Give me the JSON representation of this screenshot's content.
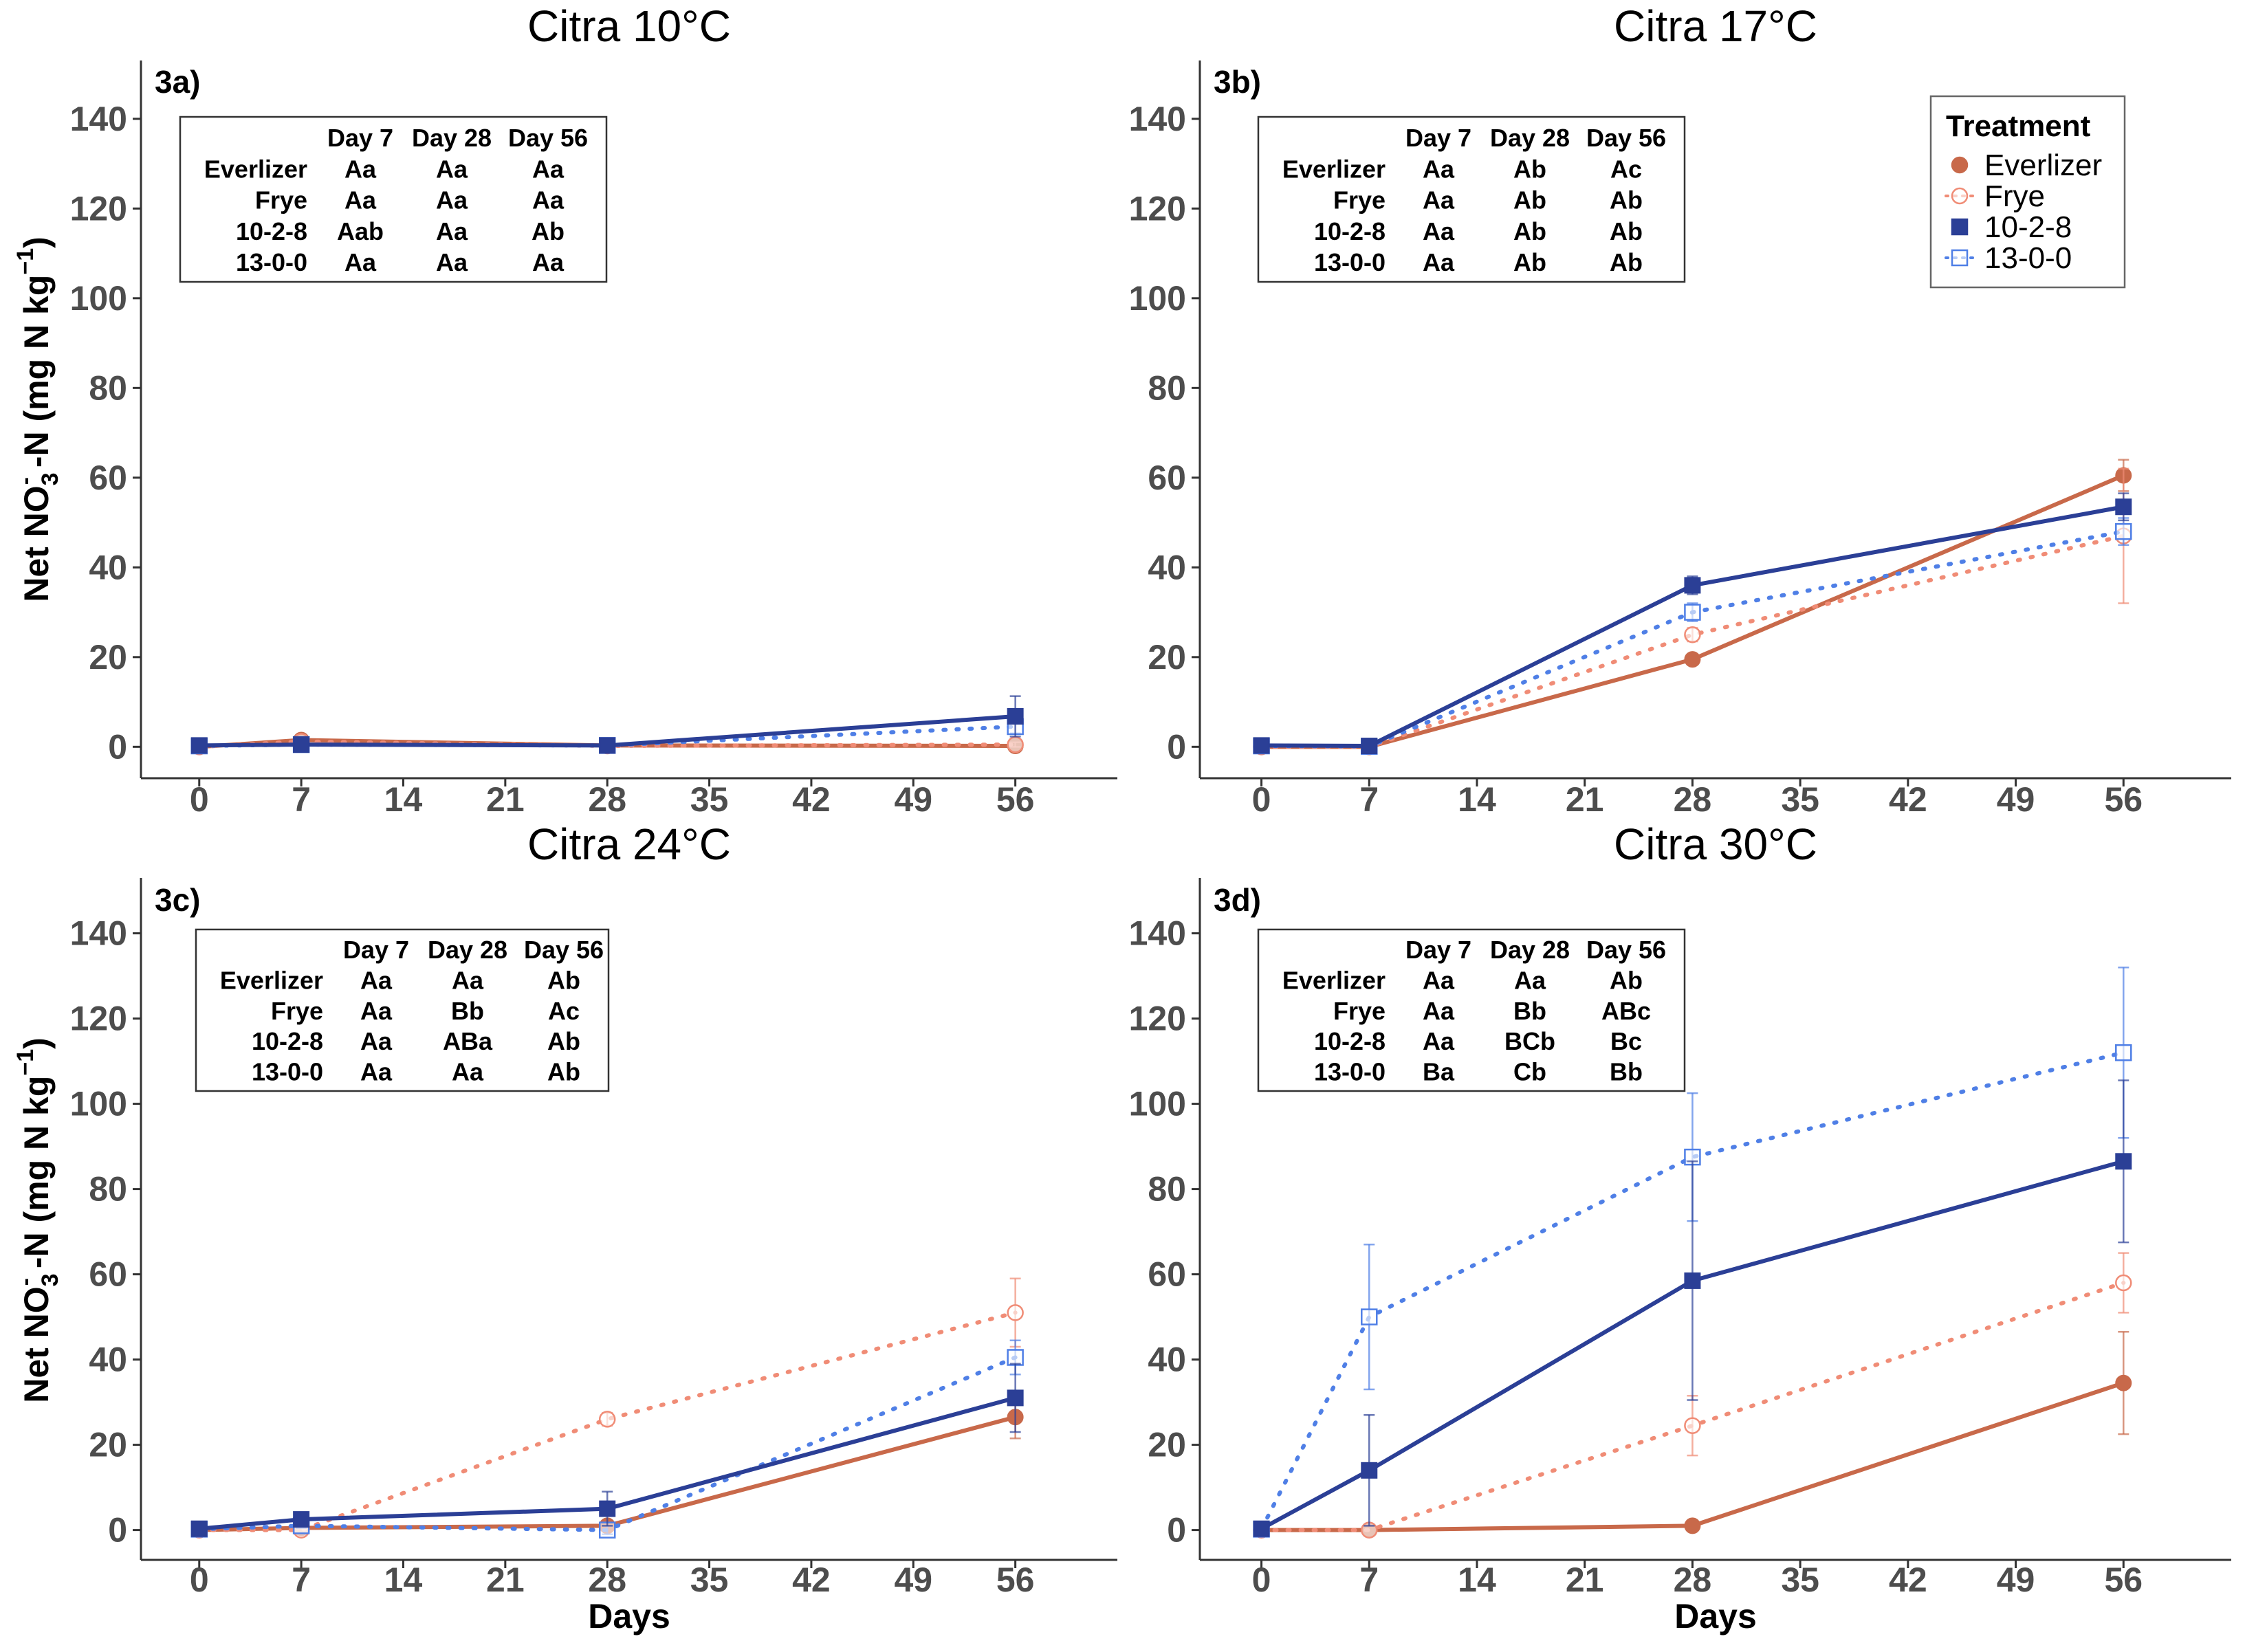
{
  "colors": {
    "Everlizer": "#c8694a",
    "Frye": "#f08c76",
    "10-2-8": "#2b3f96",
    "13-0-0": "#4f7fe6"
  },
  "y_axis_label": "Net NO3- -N (mg N kg-1)",
  "y_axis_label_parts": {
    "main": "Net NO",
    "sub": "3",
    "sup": "-",
    "mid": " -N (mg N kg",
    "sup2": "−1",
    "end": ")"
  },
  "x_axis_label": "Days",
  "legend": {
    "title": "Treatment",
    "items": [
      "Everlizer",
      "Frye",
      "10-2-8",
      "13-0-0"
    ]
  },
  "chart_data": [
    {
      "type": "line",
      "panel": "3a)",
      "title": "Citra 10°C",
      "xlabel": "",
      "ylabel": "Net NO3- -N (mg N kg-1)",
      "x_ticks": [
        0,
        7,
        14,
        21,
        28,
        35,
        42,
        49,
        56
      ],
      "y_ticks": [
        0,
        20,
        40,
        60,
        80,
        100,
        120,
        140
      ],
      "xlim": [
        -4,
        63
      ],
      "ylim": [
        -7,
        153
      ],
      "x": [
        0,
        7,
        28,
        56
      ],
      "series": [
        {
          "name": "Everlizer",
          "values": [
            0,
            1.5,
            0.3,
            0.2
          ],
          "err": [
            0,
            0.8,
            0.3,
            0.3
          ]
        },
        {
          "name": "Frye",
          "values": [
            0,
            1.2,
            0.2,
            0.5
          ],
          "err": [
            0,
            0.8,
            0.3,
            0.5
          ]
        },
        {
          "name": "10-2-8",
          "values": [
            0.3,
            0.5,
            0.3,
            6.8
          ],
          "err": [
            0,
            0.3,
            0.2,
            4.5
          ]
        },
        {
          "name": "13-0-0",
          "values": [
            0.2,
            0.5,
            0.3,
            4.5
          ],
          "err": [
            0,
            0.3,
            0.2,
            1.5
          ]
        }
      ],
      "table": {
        "headers": [
          "",
          "Day 7",
          "Day 28",
          "Day 56"
        ],
        "rows": [
          [
            "Everlizer",
            "Aa",
            "Aa",
            "Aa"
          ],
          [
            "Frye",
            "Aa",
            "Aa",
            "Aa"
          ],
          [
            "10-2-8",
            "Aab",
            "Aa",
            "Ab"
          ],
          [
            "13-0-0",
            "Aa",
            "Aa",
            "Aa"
          ]
        ]
      }
    },
    {
      "type": "line",
      "panel": "3b)",
      "title": "Citra 17°C",
      "xlabel": "",
      "ylabel": "",
      "x_ticks": [
        0,
        7,
        14,
        21,
        28,
        35,
        42,
        49,
        56
      ],
      "y_ticks": [
        0,
        20,
        40,
        60,
        80,
        100,
        120,
        140
      ],
      "xlim": [
        -4,
        63
      ],
      "ylim": [
        -7,
        153
      ],
      "x": [
        0,
        7,
        28,
        56
      ],
      "series": [
        {
          "name": "Everlizer",
          "values": [
            0,
            0,
            19.5,
            60.5
          ],
          "err": [
            0,
            0,
            1.2,
            3.5
          ]
        },
        {
          "name": "Frye",
          "values": [
            0,
            0,
            25,
            47
          ],
          "err": [
            0,
            0,
            1.5,
            15
          ]
        },
        {
          "name": "10-2-8",
          "values": [
            0.3,
            0.2,
            36,
            53.5
          ],
          "err": [
            0,
            0,
            2,
            3
          ]
        },
        {
          "name": "13-0-0",
          "values": [
            0.2,
            0.1,
            30,
            48
          ],
          "err": [
            0,
            0,
            2,
            3
          ]
        }
      ],
      "table": {
        "headers": [
          "",
          "Day 7",
          "Day 28",
          "Day 56"
        ],
        "rows": [
          [
            "Everlizer",
            "Aa",
            "Ab",
            "Ac"
          ],
          [
            "Frye",
            "Aa",
            "Ab",
            "Ab"
          ],
          [
            "10-2-8",
            "Aa",
            "Ab",
            "Ab"
          ],
          [
            "13-0-0",
            "Aa",
            "Ab",
            "Ab"
          ]
        ]
      }
    },
    {
      "type": "line",
      "panel": "3c)",
      "title": "Citra 24°C",
      "xlabel": "Days",
      "ylabel": "Net NO3- -N (mg N kg-1)",
      "x_ticks": [
        0,
        7,
        14,
        21,
        28,
        35,
        42,
        49,
        56
      ],
      "y_ticks": [
        0,
        20,
        40,
        60,
        80,
        100,
        120,
        140
      ],
      "xlim": [
        -4,
        63
      ],
      "ylim": [
        -7,
        153
      ],
      "x": [
        0,
        7,
        28,
        56
      ],
      "series": [
        {
          "name": "Everlizer",
          "values": [
            0,
            0.5,
            1,
            26.5
          ],
          "err": [
            0,
            0.5,
            0.5,
            5
          ]
        },
        {
          "name": "Frye",
          "values": [
            0,
            0,
            26,
            51
          ],
          "err": [
            0,
            0,
            1.5,
            8
          ]
        },
        {
          "name": "10-2-8",
          "values": [
            0.3,
            2.5,
            5,
            31
          ],
          "err": [
            0,
            0.5,
            4,
            8
          ]
        },
        {
          "name": "13-0-0",
          "values": [
            0.2,
            1,
            0,
            40.5
          ],
          "err": [
            0,
            0.5,
            1,
            4
          ]
        }
      ],
      "table": {
        "headers": [
          "",
          "Day 7",
          "Day 28",
          "Day 56"
        ],
        "rows": [
          [
            "Everlizer",
            "Aa",
            "Aa",
            "Ab"
          ],
          [
            "Frye",
            "Aa",
            "Bb",
            "Ac"
          ],
          [
            "10-2-8",
            "Aa",
            "ABa",
            "Ab"
          ],
          [
            "13-0-0",
            "Aa",
            "Aa",
            "Ab"
          ]
        ]
      }
    },
    {
      "type": "line",
      "panel": "3d)",
      "title": "Citra 30°C",
      "xlabel": "Days",
      "ylabel": "",
      "x_ticks": [
        0,
        7,
        14,
        21,
        28,
        35,
        42,
        49,
        56
      ],
      "y_ticks": [
        0,
        20,
        40,
        60,
        80,
        100,
        120,
        140
      ],
      "xlim": [
        -4,
        63
      ],
      "ylim": [
        -7,
        153
      ],
      "x": [
        0,
        7,
        28,
        56
      ],
      "series": [
        {
          "name": "Everlizer",
          "values": [
            0,
            0,
            1,
            34.5
          ],
          "err": [
            0,
            0,
            0.5,
            12
          ]
        },
        {
          "name": "Frye",
          "values": [
            0,
            0,
            24.5,
            58
          ],
          "err": [
            0,
            0,
            7,
            7
          ]
        },
        {
          "name": "10-2-8",
          "values": [
            0.3,
            14,
            58.5,
            86.5
          ],
          "err": [
            0,
            13,
            28,
            19
          ]
        },
        {
          "name": "13-0-0",
          "values": [
            0.2,
            50,
            87.5,
            112
          ],
          "err": [
            0,
            17,
            15,
            20
          ]
        }
      ],
      "table": {
        "headers": [
          "",
          "Day 7",
          "Day 28",
          "Day 56"
        ],
        "rows": [
          [
            "Everlizer",
            "Aa",
            "Aa",
            "Ab"
          ],
          [
            "Frye",
            "Aa",
            "Bb",
            "ABc"
          ],
          [
            "10-2-8",
            "Aa",
            "BCb",
            "Bc"
          ],
          [
            "13-0-0",
            "Ba",
            "Cb",
            "Bb"
          ]
        ]
      }
    }
  ]
}
